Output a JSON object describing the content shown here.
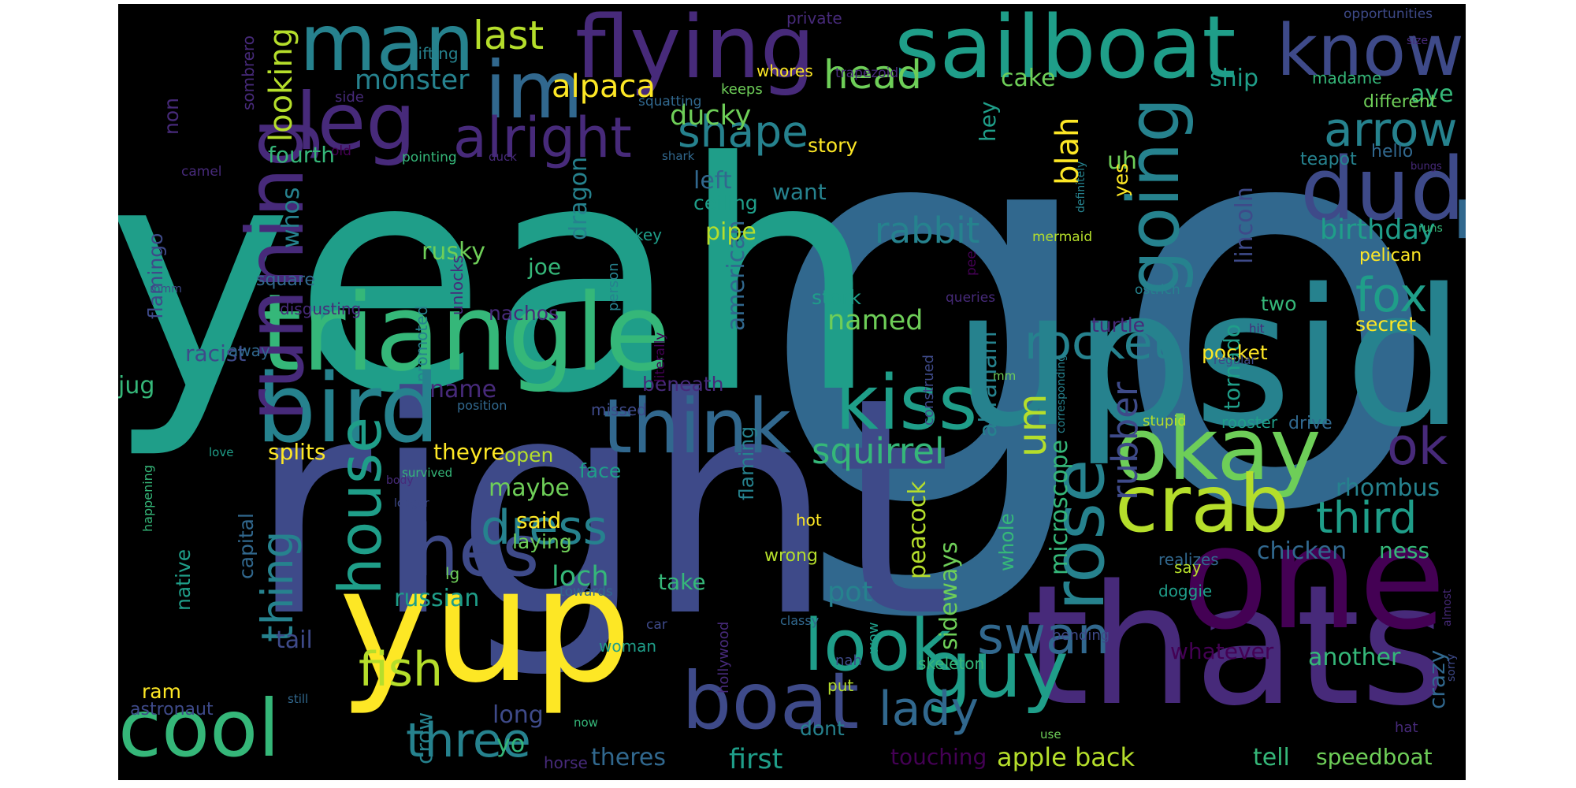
{
  "palette": {
    "background": "#000000",
    "viridis": [
      "#440154",
      "#472a7a",
      "#3e4a89",
      "#31688e",
      "#26828e",
      "#1f9e89",
      "#35b779",
      "#6ece58",
      "#b5de2b",
      "#fde725"
    ]
  },
  "words": [
    "got",
    "yeah",
    "right",
    "upside",
    "thats",
    "one",
    "yup",
    "triangle",
    "bird",
    "sailboat",
    "flying",
    "man",
    "im",
    "leg",
    "know",
    "dude",
    "okay",
    "crab",
    "guy",
    "boat",
    "cool",
    "kiss",
    "think",
    "hes",
    "running",
    "going",
    "rose",
    "look",
    "alright",
    "house",
    "fox",
    "arrow",
    "ok",
    "third",
    "rocket",
    "swan",
    "dress",
    "fish",
    "three",
    "lady",
    "head",
    "last",
    "shape",
    "rabbit",
    "squirrel",
    "thing",
    "rubber",
    "um",
    "alpaca",
    "monster",
    "ducky",
    "looking",
    "birthday",
    "blah",
    "cake",
    "ship",
    "aye",
    "uh",
    "lincoln",
    "abraham",
    "loch",
    "pot",
    "named",
    "sideways",
    "peacock",
    "microscope",
    "russian",
    "theres",
    "first",
    "touching",
    "apple back",
    "tell",
    "speedboat",
    "another",
    "whatever",
    "crazy",
    "rhombus",
    "chicken",
    "ness",
    "take",
    "said",
    "maybe",
    "laying",
    "long",
    "yo",
    "crow",
    "tail",
    "ram",
    "native",
    "capital",
    "flamingo",
    "jug",
    "racist",
    "name",
    "beneath",
    "theyre",
    "splits",
    "open",
    "face",
    "flaming",
    "american",
    "dragon",
    "joe",
    "rusky",
    "whos",
    "square",
    "nachos",
    "pipe",
    "ceiling",
    "left",
    "want",
    "hey",
    "story",
    "key",
    "stork",
    "two",
    "turtle",
    "tornado",
    "pocket",
    "secret",
    "pelican",
    "teapot",
    "hello",
    "different",
    "madame",
    "opportunities",
    "private",
    "trapezoid",
    "whores",
    "keeps",
    "squatting",
    "sombrero",
    "lifting",
    "side",
    "non",
    "fourth",
    "old",
    "camel",
    "pointing",
    "duck",
    "shark",
    "yes",
    "definitely",
    "mermaid",
    "literally",
    "promoted",
    "unlocks",
    "person",
    "queries",
    "pee",
    "ostrich",
    "disgusting",
    "away",
    "mmm",
    "position",
    "missed",
    "construed",
    "corresponding",
    "mm",
    "regular",
    "hit",
    "stupid",
    "rooster",
    "drive",
    "love",
    "happening",
    "survived",
    "body",
    "longer",
    "lg",
    "towards",
    "hot",
    "wrong",
    "whole",
    "skeleton",
    "bending",
    "doggie",
    "realizes",
    "say",
    "wow",
    "nah",
    "put",
    "hollywood",
    "car",
    "woman",
    "classy",
    "now",
    "still",
    "horse",
    "dont",
    "astronaut",
    "use",
    "hat",
    "sorry",
    "almost",
    "size",
    "runs",
    "bungs"
  ]
}
